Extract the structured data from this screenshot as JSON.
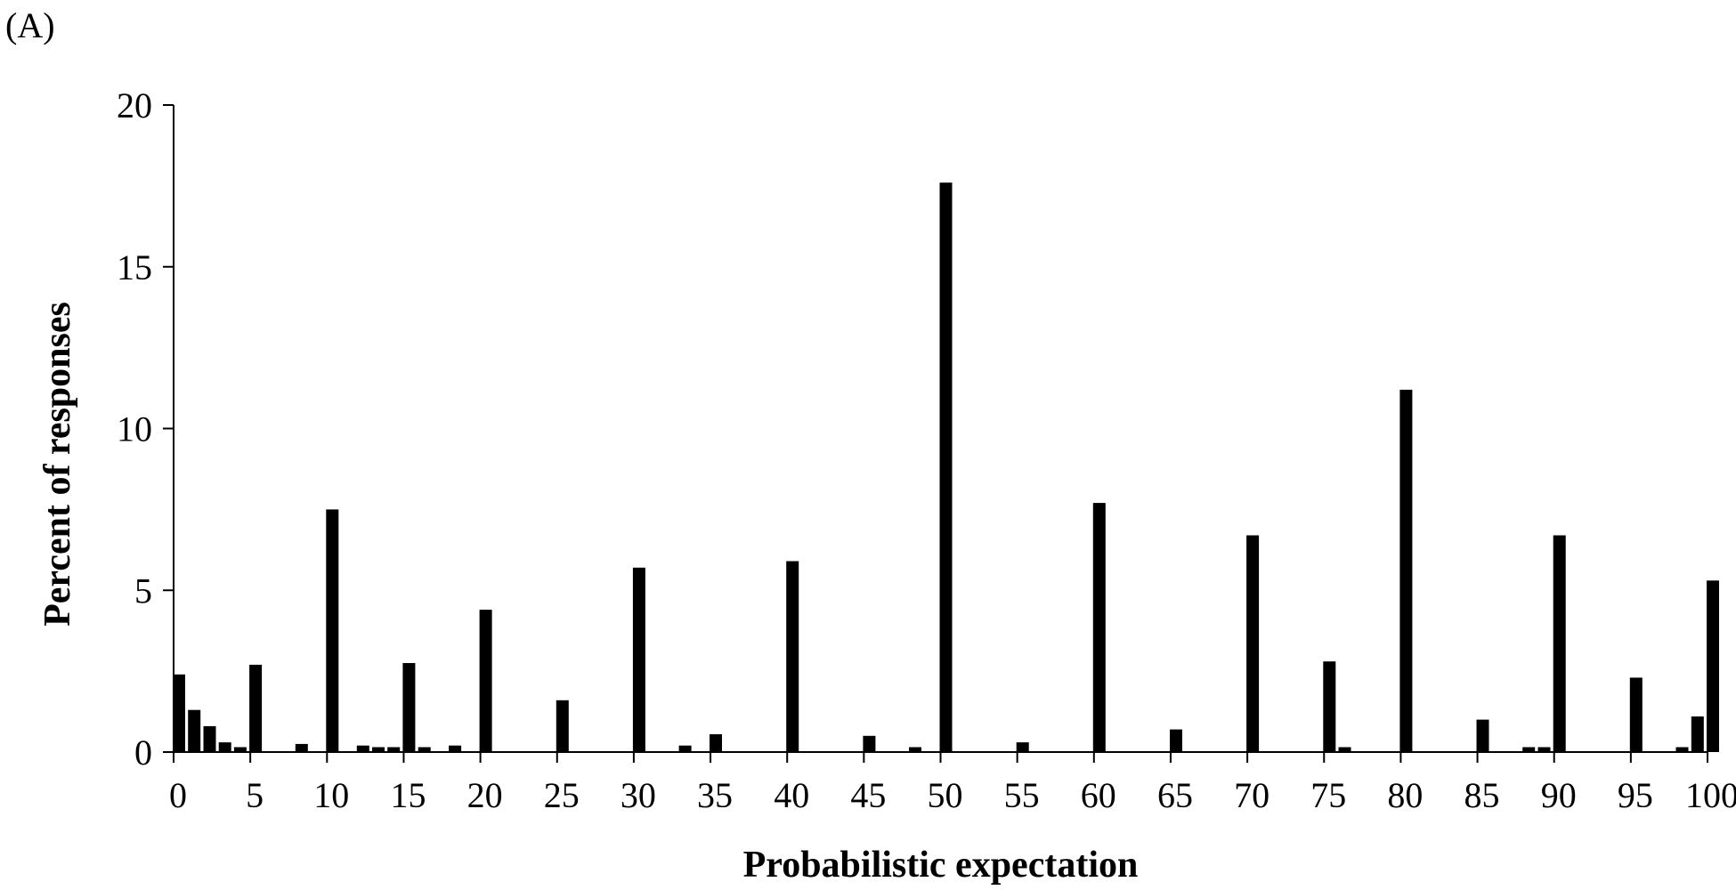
{
  "panel_label": "(A)",
  "colors": {
    "bar": "#000000",
    "axis": "#000000",
    "background": "#ffffff"
  },
  "chart_data": {
    "type": "bar",
    "title": "",
    "xlabel": "Probabilistic expectation",
    "ylabel": "Percent of responses",
    "xlim": [
      0,
      100
    ],
    "ylim": [
      0,
      20
    ],
    "xticks": [
      0,
      5,
      10,
      15,
      20,
      25,
      30,
      35,
      40,
      45,
      50,
      55,
      60,
      65,
      70,
      75,
      80,
      85,
      90,
      95,
      100
    ],
    "yticks": [
      0,
      5,
      10,
      15,
      20
    ],
    "grid": false,
    "legend": "none",
    "x": [
      0,
      1,
      2,
      3,
      4,
      5,
      8,
      10,
      12,
      13,
      14,
      15,
      16,
      18,
      20,
      25,
      30,
      33,
      35,
      40,
      45,
      48,
      50,
      55,
      60,
      65,
      70,
      75,
      76,
      80,
      85,
      88,
      89,
      90,
      95,
      98,
      99,
      100
    ],
    "values": [
      2.4,
      1.3,
      0.8,
      0.3,
      0.15,
      2.7,
      0.25,
      7.5,
      0.2,
      0.15,
      0.15,
      2.75,
      0.15,
      0.2,
      4.4,
      1.6,
      5.7,
      0.2,
      0.55,
      5.9,
      0.5,
      0.15,
      17.6,
      0.3,
      7.7,
      0.7,
      6.7,
      2.8,
      0.15,
      11.2,
      1.0,
      0.15,
      0.15,
      6.7,
      2.3,
      0.15,
      1.1,
      5.3
    ]
  }
}
